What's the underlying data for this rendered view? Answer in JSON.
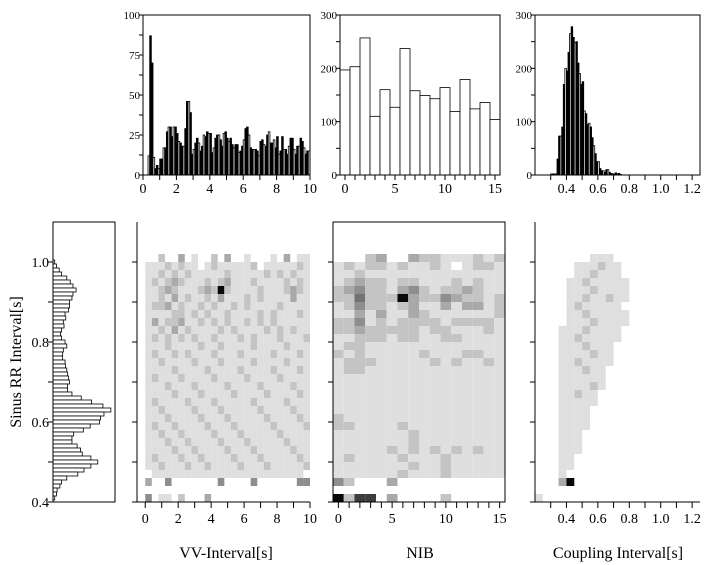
{
  "chart_data": [
    {
      "id": "vv-hist",
      "type": "bar",
      "xlim": [
        0,
        10
      ],
      "ylim": [
        0,
        100
      ],
      "xticks": [
        0,
        2,
        4,
        6,
        8,
        10
      ],
      "yticks": [
        0,
        25,
        50,
        75,
        100
      ],
      "bin_width": 0.1,
      "bin_start": 0.0,
      "values": [
        0,
        0,
        0,
        12,
        87,
        70,
        11,
        4,
        6,
        4,
        10,
        10,
        17,
        17,
        27,
        30,
        30,
        24,
        30,
        30,
        26,
        21,
        20,
        18,
        18,
        29,
        46,
        46,
        39,
        13,
        16,
        20,
        23,
        20,
        15,
        18,
        25,
        24,
        27,
        26,
        26,
        14,
        17,
        23,
        25,
        25,
        22,
        18,
        26,
        27,
        23,
        21,
        23,
        19,
        17,
        19,
        19,
        14,
        15,
        18,
        22,
        29,
        30,
        25,
        17,
        16,
        16,
        16,
        15,
        12,
        21,
        22,
        19,
        18,
        25,
        27,
        20,
        20,
        22,
        17,
        24,
        13,
        15,
        24,
        16,
        16,
        13,
        18,
        23,
        23,
        16,
        13,
        18,
        18,
        23,
        21,
        17,
        13,
        15,
        15
      ]
    },
    {
      "id": "nib-hist",
      "type": "bar",
      "xlim": [
        -0.5,
        15.5
      ],
      "ylim": [
        0,
        300
      ],
      "xticks": [
        0,
        5,
        10,
        15
      ],
      "yticks": [
        0,
        100,
        200,
        300
      ],
      "categories": [
        0,
        1,
        2,
        3,
        4,
        5,
        6,
        7,
        8,
        9,
        10,
        11,
        12,
        13,
        14,
        15
      ],
      "values": [
        197,
        203,
        257,
        110,
        160,
        127,
        237,
        158,
        149,
        143,
        164,
        119,
        179,
        124,
        136,
        104
      ]
    },
    {
      "id": "coupling-hist",
      "type": "bar",
      "xlim": [
        0.2,
        1.25
      ],
      "ylim": [
        0,
        300
      ],
      "xticks": [
        0.4,
        0.6,
        0.8,
        1.0,
        1.2
      ],
      "yticks": [
        0,
        100,
        200,
        300
      ],
      "bin_width": 0.01,
      "bin_start": 0.3,
      "values": [
        2,
        2,
        2,
        2,
        30,
        73,
        73,
        90,
        170,
        200,
        195,
        230,
        265,
        278,
        258,
        248,
        250,
        210,
        190,
        170,
        175,
        120,
        115,
        95,
        97,
        90,
        70,
        55,
        40,
        25,
        25,
        12,
        8,
        8,
        5,
        10,
        10,
        5,
        3,
        2,
        2,
        4,
        2,
        3,
        1
      ]
    },
    {
      "id": "rr-hist",
      "type": "bar",
      "orientation": "horizontal",
      "ylim": [
        0.4,
        1.1
      ],
      "xlim": [
        0,
        180
      ],
      "yticks": [
        0.4,
        0.6,
        0.8,
        1.0
      ],
      "ylabel": "Sinus RR Interval[s]",
      "bin_width": 0.01,
      "bin_centers_desc_start": 1.0,
      "values": [
        5,
        10,
        18,
        25,
        40,
        50,
        58,
        67,
        58,
        55,
        48,
        48,
        45,
        35,
        37,
        30,
        32,
        25,
        22,
        25,
        35,
        40,
        30,
        28,
        28,
        35,
        36,
        40,
        42,
        45,
        48,
        42,
        42,
        55,
        82,
        112,
        145,
        168,
        148,
        138,
        135,
        108,
        88,
        60,
        55,
        55,
        70,
        80,
        85,
        110,
        130,
        110,
        90,
        72,
        40,
        25,
        20,
        12,
        10,
        5
      ]
    },
    {
      "id": "vv-heatmap",
      "type": "heatmap",
      "xlim": [
        -0.5,
        10
      ],
      "ylim": [
        0.4,
        1.1
      ],
      "xticks": [
        0,
        2,
        4,
        6,
        8,
        10
      ],
      "xlabel": "VV-Interval[s]",
      "x_bin_start": 0,
      "x_bin_width": 0.4,
      "y_bin_top": 1.02,
      "y_bin_height": 0.02,
      "rows": [
        "0020030100203001000103011",
        "1112121101211111201111121",
        "1121212111112111112121211",
        "1212321112123111211112121",
        "1123211123292111121112321",
        "1121312112131112121111311",
        "1223121121211212111121111",
        "1111221212112111121211121",
        "1312231121212112121211111",
        "1121312111121211112121211",
        "1212121211211121211121112",
        "1112111121121111211112111",
        "1211212111211121111211121",
        "1121111211121111211112111",
        "1111211112111121111211121",
        "1211121111211112111121111",
        "1112111211112111121111211",
        "1111211121111211112111121",
        "1211112111211111211112111",
        "1121111211121111121111211",
        "1112111121112111112111121",
        "1211211112111211111211112",
        "1121121111211121111121111",
        "1112112111121112111112111",
        "1111211211112111211111211",
        "1211121121111211121111121",
        "1121112112111121112111112",
        "0111111111111111111111110",
        "3004000000040000400000044",
        "0000000000000000000000000",
        "4011020003000000000000000"
      ]
    },
    {
      "id": "nib-heatmap",
      "type": "heatmap",
      "xlim": [
        -0.5,
        15.5
      ],
      "ylim": [
        0.4,
        1.1
      ],
      "xticks": [
        0,
        5,
        10,
        15
      ],
      "xlabel": "NIB",
      "x_categories": [
        0,
        1,
        2,
        3,
        4,
        5,
        6,
        7,
        8,
        9,
        10,
        11,
        12,
        13,
        14,
        15
      ],
      "y_bin_top": 1.02,
      "y_bin_height": 0.02,
      "rows": [
        "0002300322111212",
        "1212212112101221",
        "1121111111111111",
        "1232212211121211",
        "2342213421223211",
        "2252229322432212",
        "1242212311313312",
        "1131311321111112",
        "2241212222122221",
        "2232222212211121",
        "1122212211221111",
        "1221111111111111",
        "2121111121112211",
        "1222111112121121",
        "1221111111111111",
        "1111111111111111",
        "1111111111111111",
        "1111111111111111",
        "1111111111111111",
        "1111111111111111",
        "2111111111111111",
        "2211112111111111",
        "1111111211111111",
        "1111111211111111",
        "1111121212121211",
        "1211112111211111",
        "1111111211211111",
        "1111112111211111",
        "4200030000000000",
        "0000000000000000",
        "9277030000200000"
      ]
    },
    {
      "id": "coupling-heatmap",
      "type": "heatmap",
      "xlim": [
        0.2,
        1.25
      ],
      "ylim": [
        0.4,
        1.1
      ],
      "xticks": [
        0.4,
        0.6,
        0.8,
        1.0,
        1.2
      ],
      "xlabel": "Coupling Interval[s]",
      "x_bin_start": 0.2,
      "x_bin_width": 0.05,
      "y_bin_top": 1.02,
      "y_bin_height": 0.02,
      "rows": [
        "000000011100000000000",
        "000001112110000000000",
        "000001121110000000000",
        "000011211111000000000",
        "000011121111000000000",
        "000011211211000000000",
        "000012111110000000000",
        "000011211111000000000",
        "000011121111000000000",
        "000111211110000000000",
        "000112111110000000000",
        "000111211100000000000",
        "000111121100000000000",
        "000112111100000000000",
        "000111211000000000000",
        "000111111000000000000",
        "000111121000000000000",
        "000112110000000000000",
        "000111110000000000000",
        "000111100000000000000",
        "000111100000000000000",
        "000111100000000000000",
        "000111000000000000000",
        "000111000000000000000",
        "000111000000000000000",
        "000110000000000000000",
        "000110000000000000000",
        "000100000000000000000",
        "000390000000000000000",
        "000000000000000000000",
        "100000000000000000000"
      ]
    }
  ]
}
